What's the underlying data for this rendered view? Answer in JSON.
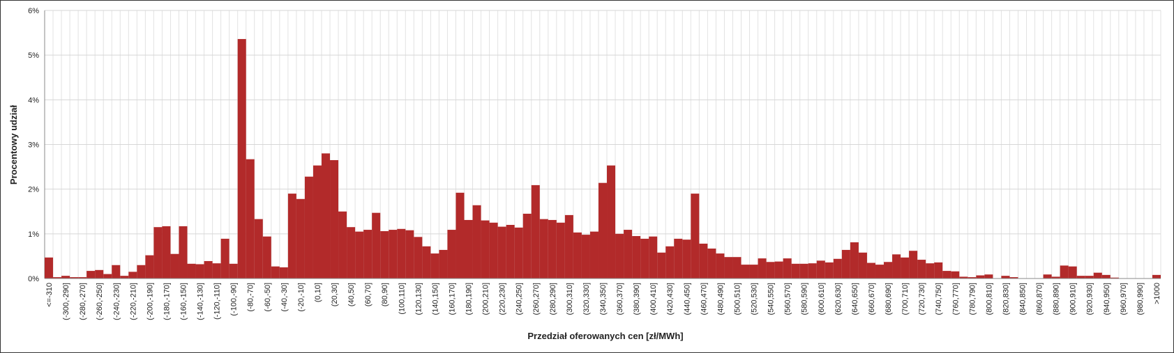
{
  "chart_data": {
    "type": "bar",
    "ylabel": "Procentowy udział",
    "xlabel": "Przedział oferowanych cen [zł/MWh]",
    "color": "#b22a2a",
    "grid": true,
    "ylim": [
      0,
      6
    ],
    "yticks": [
      {
        "value": 0,
        "label": "0%"
      },
      {
        "value": 1,
        "label": "1%"
      },
      {
        "value": 2,
        "label": "2%"
      },
      {
        "value": 3,
        "label": "3%"
      },
      {
        "value": 4,
        "label": "4%"
      },
      {
        "value": 5,
        "label": "5%"
      },
      {
        "value": 6,
        "label": "6%"
      }
    ],
    "categories": [
      "<=-310",
      null,
      "(-300,-290]",
      null,
      "(-280,-270]",
      null,
      "(-260,-250]",
      null,
      "(-240,-230]",
      null,
      "(-220,-210]",
      null,
      "(-200,-190]",
      null,
      "(-180,-170]",
      null,
      "(-160,-150]",
      null,
      "(-140,-130]",
      null,
      "(-120,-110]",
      null,
      "(-100,-90]",
      null,
      "(-80,-70]",
      null,
      "(-60,-50]",
      null,
      "(-40,-30]",
      null,
      "(-20,-10]",
      null,
      "(0,10]",
      null,
      "(20,30]",
      null,
      "(40,50]",
      null,
      "(60,70]",
      null,
      "(80,90]",
      null,
      "(100,110]",
      null,
      "(120,130]",
      null,
      "(140,150]",
      null,
      "(160,170]",
      null,
      "(180,190]",
      null,
      "(200,210]",
      null,
      "(220,230]",
      null,
      "(240,250]",
      null,
      "(260,270]",
      null,
      "(280,290]",
      null,
      "(300,310]",
      null,
      "(320,330]",
      null,
      "(340,350]",
      null,
      "(360,370]",
      null,
      "(380,390]",
      null,
      "(400,410]",
      null,
      "(420,430]",
      null,
      "(440,450]",
      null,
      "(460,470]",
      null,
      "(480,490]",
      null,
      "(500,510]",
      null,
      "(520,530]",
      null,
      "(540,550]",
      null,
      "(560,570]",
      null,
      "(580,590]",
      null,
      "(600,610]",
      null,
      "(620,630]",
      null,
      "(640,650]",
      null,
      "(660,670]",
      null,
      "(680,690]",
      null,
      "(700,710]",
      null,
      "(720,730]",
      null,
      "(740,750]",
      null,
      "(760,770]",
      null,
      "(780,790]",
      null,
      "(800,810]",
      null,
      "(820,830]",
      null,
      "(840,850]",
      null,
      "(860,870]",
      null,
      "(880,890]",
      null,
      "(900,910]",
      null,
      "(920,930]",
      null,
      "(940,950]",
      null,
      "(960,970]",
      null,
      "(980,990]",
      null,
      ">1000"
    ],
    "values": [
      0.47,
      0.03,
      0.06,
      0.03,
      0.03,
      0.17,
      0.19,
      0.1,
      0.3,
      0.06,
      0.15,
      0.3,
      0.52,
      1.15,
      1.17,
      0.55,
      1.17,
      0.33,
      0.32,
      0.39,
      0.34,
      0.89,
      0.33,
      5.36,
      2.67,
      1.33,
      0.94,
      0.27,
      0.25,
      1.9,
      1.78,
      2.28,
      2.53,
      2.8,
      2.65,
      1.5,
      1.15,
      1.05,
      1.09,
      1.47,
      1.06,
      1.09,
      1.11,
      1.08,
      0.93,
      0.72,
      0.56,
      0.64,
      1.09,
      1.92,
      1.31,
      1.64,
      1.3,
      1.25,
      1.16,
      1.2,
      1.14,
      1.45,
      2.09,
      1.33,
      1.31,
      1.25,
      1.42,
      1.03,
      0.98,
      1.05,
      2.14,
      2.53,
      1.0,
      1.09,
      0.95,
      0.89,
      0.94,
      0.58,
      0.72,
      0.89,
      0.87,
      1.9,
      0.78,
      0.67,
      0.56,
      0.48,
      0.48,
      0.31,
      0.31,
      0.45,
      0.37,
      0.38,
      0.45,
      0.33,
      0.33,
      0.34,
      0.4,
      0.36,
      0.44,
      0.64,
      0.81,
      0.58,
      0.35,
      0.31,
      0.37,
      0.54,
      0.47,
      0.62,
      0.42,
      0.34,
      0.36,
      0.17,
      0.16,
      0.04,
      0.03,
      0.07,
      0.09,
      0,
      0.06,
      0.03,
      0,
      0,
      0,
      0.09,
      0.04,
      0.29,
      0.27,
      0.06,
      0.06,
      0.13,
      0.08,
      0.02,
      0,
      0,
      0,
      0,
      0.08
    ]
  }
}
